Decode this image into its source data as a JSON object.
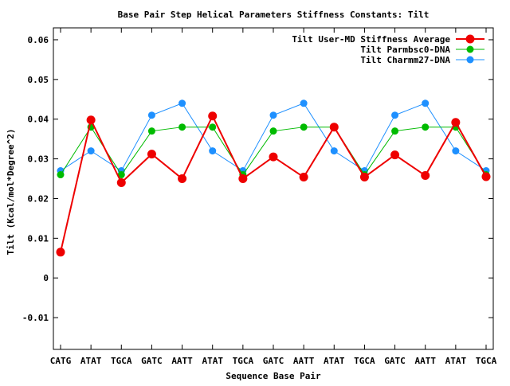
{
  "chart_data": {
    "type": "line",
    "title": "Base Pair Step Helical Parameters Stiffness Constants: Tilt",
    "xlabel": "Sequence Base Pair",
    "ylabel": "Tilt (Kcal/mol*Degree^2)",
    "categories": [
      "CATG",
      "ATAT",
      "TGCA",
      "GATC",
      "AATT",
      "ATAT",
      "TGCA",
      "GATC",
      "AATT",
      "ATAT",
      "TGCA",
      "GATC",
      "AATT",
      "ATAT",
      "TGCA"
    ],
    "ylim": [
      -0.018,
      0.063
    ],
    "yticks": [
      -0.01,
      0,
      0.01,
      0.02,
      0.03,
      0.04,
      0.05,
      0.06
    ],
    "ytick_labels": [
      "-0.01",
      "0",
      "0.01",
      "0.02",
      "0.03",
      "0.04",
      "0.05",
      "0.06"
    ],
    "grid": false,
    "legend_position": "top-right",
    "series": [
      {
        "name": "Tilt User-MD Stiffness Average",
        "color": "#ee0000",
        "values": [
          0.0065,
          0.0398,
          0.024,
          0.0312,
          0.025,
          0.0408,
          0.025,
          0.0305,
          0.0254,
          0.038,
          0.0254,
          0.031,
          0.0258,
          0.0392,
          0.0255
        ]
      },
      {
        "name": "Tilt Parmbsc0-DNA",
        "color": "#00bb00",
        "values": [
          0.026,
          0.038,
          0.026,
          0.037,
          0.038,
          0.038,
          0.026,
          0.037,
          0.038,
          0.038,
          0.026,
          0.037,
          0.038,
          0.038,
          0.026
        ]
      },
      {
        "name": "Tilt Charmm27-DNA",
        "color": "#1e90ff",
        "values": [
          0.027,
          0.032,
          0.027,
          0.041,
          0.044,
          0.032,
          0.027,
          0.041,
          0.044,
          0.032,
          0.027,
          0.041,
          0.044,
          0.032,
          0.027
        ]
      }
    ]
  }
}
